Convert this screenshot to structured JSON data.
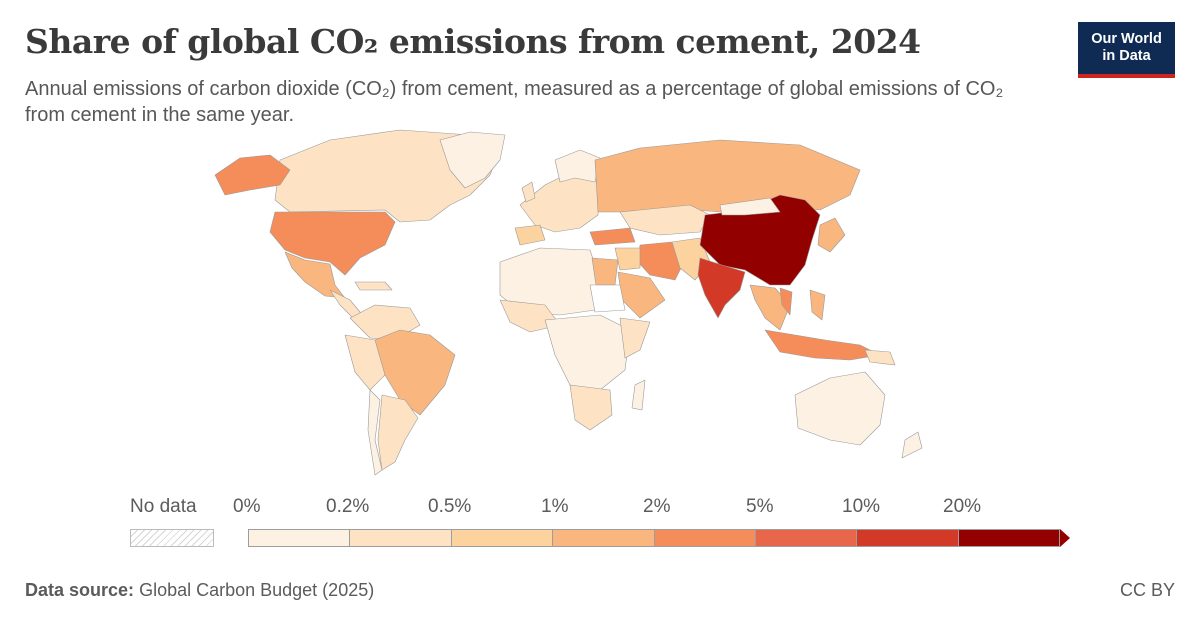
{
  "header": {
    "title": "Share of global CO₂ emissions from cement, 2024",
    "subtitle": "Annual emissions of carbon dioxide (CO₂) from cement, measured as a percentage of global emissions of CO₂ from cement in the same year."
  },
  "logo": {
    "line1": "Our World",
    "line2": "in Data",
    "bg_color": "#0f2b54",
    "accent_color": "#ce261e"
  },
  "legend": {
    "no_data_label": "No data",
    "ticks": [
      "0%",
      "0.2%",
      "0.5%",
      "1%",
      "2%",
      "5%",
      "10%",
      "20%"
    ],
    "colors": [
      "#fdf1e4",
      "#fde3c4",
      "#fcd29f",
      "#f9b67e",
      "#f58d5a",
      "#e8664a",
      "#d23926",
      "#930000"
    ]
  },
  "map_data": {
    "type": "choropleth",
    "year": 2024,
    "bins": [
      "0-0.2%",
      "0.2-0.5%",
      "0.5-1%",
      "1-2%",
      "2-5%",
      "5-10%",
      "10-20%",
      ">20%"
    ],
    "regions": [
      {
        "name": "China",
        "bin": 7
      },
      {
        "name": "India",
        "bin": 6
      },
      {
        "name": "United States",
        "bin": 4
      },
      {
        "name": "Turkey",
        "bin": 4
      },
      {
        "name": "Iran",
        "bin": 4
      },
      {
        "name": "Vietnam",
        "bin": 4
      },
      {
        "name": "Indonesia",
        "bin": 4
      },
      {
        "name": "Russia",
        "bin": 3
      },
      {
        "name": "Brazil",
        "bin": 3
      },
      {
        "name": "Saudi Arabia",
        "bin": 3
      },
      {
        "name": "Egypt",
        "bin": 3
      },
      {
        "name": "Japan",
        "bin": 3
      },
      {
        "name": "Mexico",
        "bin": 3
      },
      {
        "name": "Canada",
        "bin": 1
      },
      {
        "name": "Greenland",
        "bin": 0
      },
      {
        "name": "Australia",
        "bin": 0
      },
      {
        "name": "Sudan",
        "bin": null
      }
    ]
  },
  "footer": {
    "source_label": "Data source:",
    "source_text": "Global Carbon Budget (2025)",
    "license": "CC BY"
  }
}
